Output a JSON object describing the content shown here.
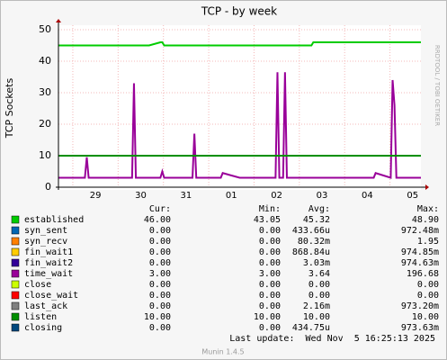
{
  "chart_data": {
    "type": "line",
    "title": "TCP - by week",
    "y_label": "TCP Sockets",
    "watermark": "RRDTOOL / TOBI OETIKER",
    "x": [
      0,
      8,
      14,
      15,
      16,
      24,
      32,
      39,
      40,
      41,
      48,
      54,
      55,
      56,
      64,
      71,
      72,
      73,
      80,
      86,
      87,
      96,
      104,
      115,
      116,
      117,
      119,
      120,
      121,
      128,
      134,
      135,
      144,
      152,
      160,
      167,
      168,
      176,
      177,
      178,
      179,
      186,
      192
    ],
    "xlim": [
      0,
      192
    ],
    "xticks": [
      {
        "value": 19.6,
        "label": "29"
      },
      {
        "value": 43.6,
        "label": "30"
      },
      {
        "value": 67.6,
        "label": "31"
      },
      {
        "value": 91.6,
        "label": "01"
      },
      {
        "value": 115.6,
        "label": "02"
      },
      {
        "value": 139.6,
        "label": "03"
      },
      {
        "value": 163.6,
        "label": "04"
      },
      {
        "value": 187.6,
        "label": "05"
      }
    ],
    "ylim": [
      0,
      50
    ],
    "yticks": [
      0,
      10,
      20,
      30,
      40,
      50
    ],
    "grid": true,
    "stat_headers": [
      "Cur:",
      "Min:",
      "Avg:",
      "Max:"
    ],
    "series": [
      {
        "name": "established",
        "color": "#00cc00",
        "stats": [
          "46.00",
          "43.05",
          "45.32",
          "48.90"
        ],
        "values": [
          45,
          45,
          45,
          45,
          45,
          45,
          45,
          45,
          45,
          45,
          45,
          46,
          46,
          45,
          45,
          45,
          45,
          45,
          45,
          45,
          45,
          45,
          45,
          45,
          45,
          45,
          45,
          45,
          45,
          45,
          45,
          46,
          46,
          46,
          46,
          46,
          46,
          46,
          46,
          46,
          46,
          46,
          46
        ]
      },
      {
        "name": "syn_sent",
        "color": "#0066b3",
        "stats": [
          "0.00",
          "0.00",
          "433.66u",
          "972.48m"
        ]
      },
      {
        "name": "syn_recv",
        "color": "#ff8000",
        "stats": [
          "0.00",
          "0.00",
          "80.32m",
          "1.95"
        ]
      },
      {
        "name": "fin_wait1",
        "color": "#ffcc00",
        "stats": [
          "0.00",
          "0.00",
          "868.84u",
          "974.85m"
        ]
      },
      {
        "name": "fin_wait2",
        "color": "#330099",
        "stats": [
          "0.00",
          "0.00",
          "3.03m",
          "974.63m"
        ]
      },
      {
        "name": "time_wait",
        "color": "#990099",
        "stats": [
          "3.00",
          "3.00",
          "3.64",
          "196.68"
        ],
        "values": [
          3,
          3,
          3,
          9.5,
          3,
          3,
          3,
          3,
          33,
          3,
          3,
          3,
          5,
          3,
          3,
          3,
          17,
          3,
          3,
          3,
          4.5,
          3,
          3,
          3,
          36.5,
          3,
          3,
          36.5,
          3,
          3,
          3,
          3,
          3,
          3,
          3,
          3,
          4.5,
          3,
          34,
          26,
          3,
          3,
          3
        ]
      },
      {
        "name": "close",
        "color": "#ccff00",
        "stats": [
          "0.00",
          "0.00",
          "0.00",
          "0.00"
        ]
      },
      {
        "name": "close_wait",
        "color": "#ff0000",
        "stats": [
          "0.00",
          "0.00",
          "0.00",
          "0.00"
        ]
      },
      {
        "name": "last_ack",
        "color": "#808080",
        "stats": [
          "0.00",
          "0.00",
          "2.16m",
          "973.20m"
        ]
      },
      {
        "name": "listen",
        "color": "#008f00",
        "stats": [
          "10.00",
          "10.00",
          "10.00",
          "10.00"
        ],
        "values": [
          10,
          10,
          10,
          10,
          10,
          10,
          10,
          10,
          10,
          10,
          10,
          10,
          10,
          10,
          10,
          10,
          10,
          10,
          10,
          10,
          10,
          10,
          10,
          10,
          10,
          10,
          10,
          10,
          10,
          10,
          10,
          10,
          10,
          10,
          10,
          10,
          10,
          10,
          10,
          10,
          10,
          10,
          10
        ]
      },
      {
        "name": "closing",
        "color": "#00487d",
        "stats": [
          "0.00",
          "0.00",
          "434.75u",
          "973.63m"
        ]
      }
    ],
    "last_update": "Last update:  Wed Nov  5 16:25:13 2025",
    "footer": "Munin 1.4.5"
  }
}
